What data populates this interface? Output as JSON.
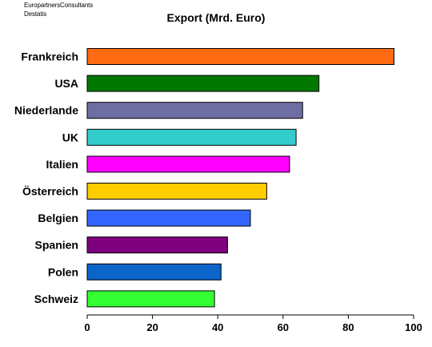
{
  "source_lines": [
    "EuropartnersConsultants",
    "Destatis"
  ],
  "chart_data": {
    "type": "bar",
    "orientation": "horizontal",
    "title": "Export (Mrd. Euro)",
    "xlabel": "",
    "ylabel": "",
    "xlim": [
      0,
      100
    ],
    "xticks": [
      0,
      20,
      40,
      60,
      80,
      100
    ],
    "grid": false,
    "categories": [
      "Frankreich",
      "USA",
      "Niederlande",
      "UK",
      "Italien",
      "Österreich",
      "Belgien",
      "Spanien",
      "Polen",
      "Schweiz"
    ],
    "values": [
      94,
      71,
      66,
      64,
      62,
      55,
      50,
      43,
      41,
      39
    ],
    "colors": [
      "#ff6a13",
      "#007800",
      "#6e6ea3",
      "#33cccc",
      "#ff00ff",
      "#ffcc00",
      "#3366ff",
      "#7f007f",
      "#0b64c8",
      "#33ff33"
    ]
  }
}
